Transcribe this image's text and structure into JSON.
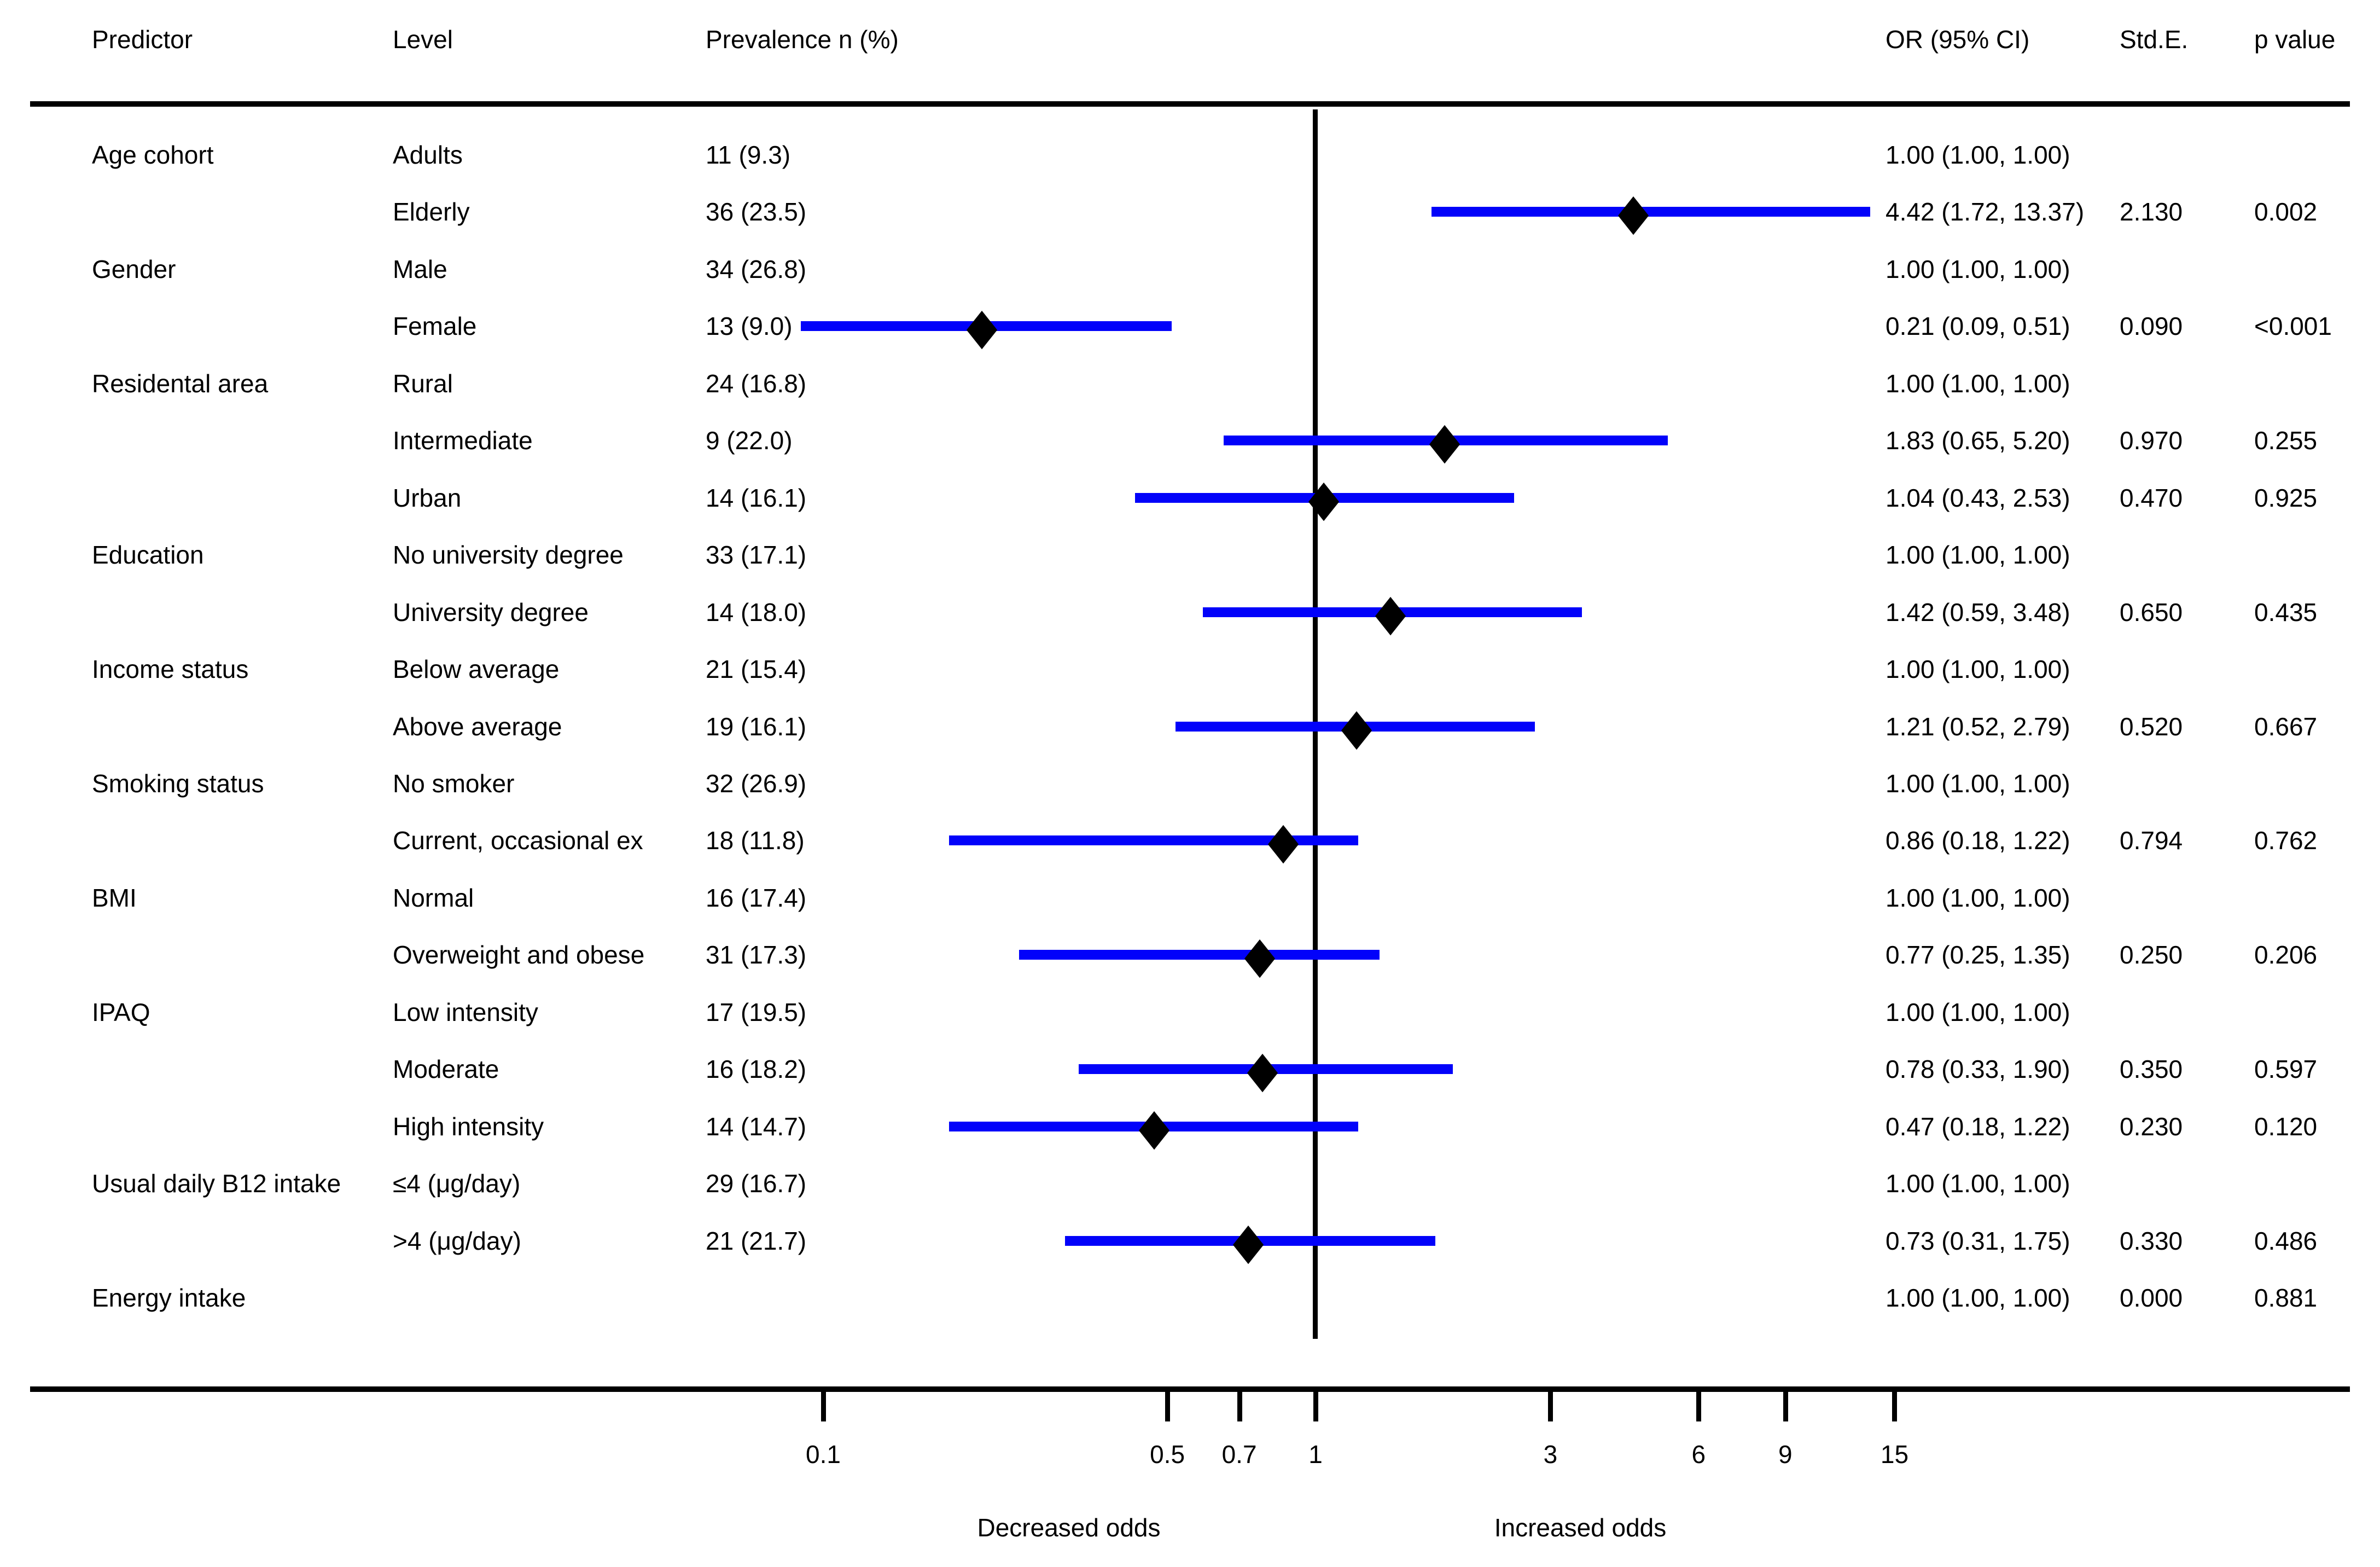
{
  "colors": {
    "ci_line": "#0202fa",
    "marker": "#000000",
    "text": "#000000",
    "rule": "#000000"
  },
  "chart_data": {
    "type": "forest",
    "x_scale": "log10",
    "reference_line": 1,
    "x_ticks": [
      0.1,
      0.5,
      0.7,
      1,
      3,
      6,
      9,
      15
    ],
    "axis_caption_left": "Decreased odds",
    "axis_caption_right": "Increased odds",
    "columns": {
      "predictor": "Predictor",
      "level": "Level",
      "prevalence": "Prevalence n (%)",
      "or": "OR (95% CI)",
      "se": "Std.E.",
      "p": "p value"
    },
    "rows": [
      {
        "predictor": "Age cohort",
        "level": "Adults",
        "prevalence": "11 (9.3)",
        "or": null,
        "lo": null,
        "hi": null,
        "or_text": "1.00 (1.00, 1.00)",
        "se": "",
        "p": ""
      },
      {
        "predictor": "",
        "level": "Elderly",
        "prevalence": "36 (23.5)",
        "or": 4.42,
        "lo": 1.72,
        "hi": 13.37,
        "or_text": "4.42 (1.72, 13.37)",
        "se": "2.130",
        "p": "0.002"
      },
      {
        "predictor": "Gender",
        "level": "Male",
        "prevalence": "34 (26.8)",
        "or": null,
        "lo": null,
        "hi": null,
        "or_text": "1.00 (1.00, 1.00)",
        "se": "",
        "p": ""
      },
      {
        "predictor": "",
        "level": "Female",
        "prevalence": "13 (9.0)",
        "or": 0.21,
        "lo": 0.09,
        "hi": 0.51,
        "or_text": "0.21 (0.09, 0.51)",
        "se": "0.090",
        "p": "<0.001"
      },
      {
        "predictor": "Residental area",
        "level": "Rural",
        "prevalence": "24 (16.8)",
        "or": null,
        "lo": null,
        "hi": null,
        "or_text": "1.00 (1.00, 1.00)",
        "se": "",
        "p": ""
      },
      {
        "predictor": "",
        "level": "Intermediate",
        "prevalence": "9 (22.0)",
        "or": 1.83,
        "lo": 0.65,
        "hi": 5.2,
        "or_text": "1.83 (0.65, 5.20)",
        "se": "0.970",
        "p": "0.255"
      },
      {
        "predictor": "",
        "level": "Urban",
        "prevalence": "14 (16.1)",
        "or": 1.04,
        "lo": 0.43,
        "hi": 2.53,
        "or_text": "1.04 (0.43, 2.53)",
        "se": "0.470",
        "p": "0.925"
      },
      {
        "predictor": "Education",
        "level": "No university degree",
        "prevalence": "33 (17.1)",
        "or": null,
        "lo": null,
        "hi": null,
        "or_text": "1.00 (1.00, 1.00)",
        "se": "",
        "p": ""
      },
      {
        "predictor": "",
        "level": "University degree",
        "prevalence": "14 (18.0)",
        "or": 1.42,
        "lo": 0.59,
        "hi": 3.48,
        "or_text": "1.42 (0.59, 3.48)",
        "se": "0.650",
        "p": "0.435"
      },
      {
        "predictor": "Income status",
        "level": "Below average",
        "prevalence": "21 (15.4)",
        "or": null,
        "lo": null,
        "hi": null,
        "or_text": "1.00 (1.00, 1.00)",
        "se": "",
        "p": ""
      },
      {
        "predictor": "",
        "level": "Above average",
        "prevalence": "19 (16.1)",
        "or": 1.21,
        "lo": 0.52,
        "hi": 2.79,
        "or_text": "1.21 (0.52, 2.79)",
        "se": "0.520",
        "p": "0.667"
      },
      {
        "predictor": "Smoking status",
        "level": "No smoker",
        "prevalence": "32 (26.9)",
        "or": null,
        "lo": null,
        "hi": null,
        "or_text": "1.00 (1.00, 1.00)",
        "se": "",
        "p": ""
      },
      {
        "predictor": "",
        "level": "Current, occasional ex",
        "prevalence": "18 (11.8)",
        "or": 0.86,
        "lo": 0.18,
        "hi": 1.22,
        "or_text": "0.86 (0.18, 1.22)",
        "se": "0.794",
        "p": "0.762"
      },
      {
        "predictor": "BMI",
        "level": "Normal",
        "prevalence": "16 (17.4)",
        "or": null,
        "lo": null,
        "hi": null,
        "or_text": "1.00 (1.00, 1.00)",
        "se": "",
        "p": ""
      },
      {
        "predictor": "",
        "level": "Overweight and obese",
        "prevalence": "31 (17.3)",
        "or": 0.77,
        "lo": 0.25,
        "hi": 1.35,
        "or_text": "0.77 (0.25, 1.35)",
        "se": "0.250",
        "p": "0.206"
      },
      {
        "predictor": "IPAQ",
        "level": "Low intensity",
        "prevalence": "17 (19.5)",
        "or": null,
        "lo": null,
        "hi": null,
        "or_text": "1.00 (1.00, 1.00)",
        "se": "",
        "p": ""
      },
      {
        "predictor": "",
        "level": "Moderate",
        "prevalence": "16 (18.2)",
        "or": 0.78,
        "lo": 0.33,
        "hi": 1.9,
        "or_text": "0.78 (0.33, 1.90)",
        "se": "0.350",
        "p": "0.597"
      },
      {
        "predictor": "",
        "level": "High intensity",
        "prevalence": "14 (14.7)",
        "or": 0.47,
        "lo": 0.18,
        "hi": 1.22,
        "or_text": "0.47 (0.18, 1.22)",
        "se": "0.230",
        "p": "0.120"
      },
      {
        "predictor": "Usual daily B12 intake",
        "level": "≤4 (μg/day)",
        "prevalence": "29 (16.7)",
        "or": null,
        "lo": null,
        "hi": null,
        "or_text": "1.00 (1.00, 1.00)",
        "se": "",
        "p": ""
      },
      {
        "predictor": "",
        "level": ">4 (μg/day)",
        "prevalence": "21 (21.7)",
        "or": 0.73,
        "lo": 0.31,
        "hi": 1.75,
        "or_text": "0.73 (0.31, 1.75)",
        "se": "0.330",
        "p": "0.486"
      },
      {
        "predictor": "Energy intake",
        "level": "",
        "prevalence": "",
        "or": null,
        "lo": null,
        "hi": null,
        "or_text": "1.00 (1.00, 1.00)",
        "se": "0.000",
        "p": "0.881"
      }
    ]
  }
}
